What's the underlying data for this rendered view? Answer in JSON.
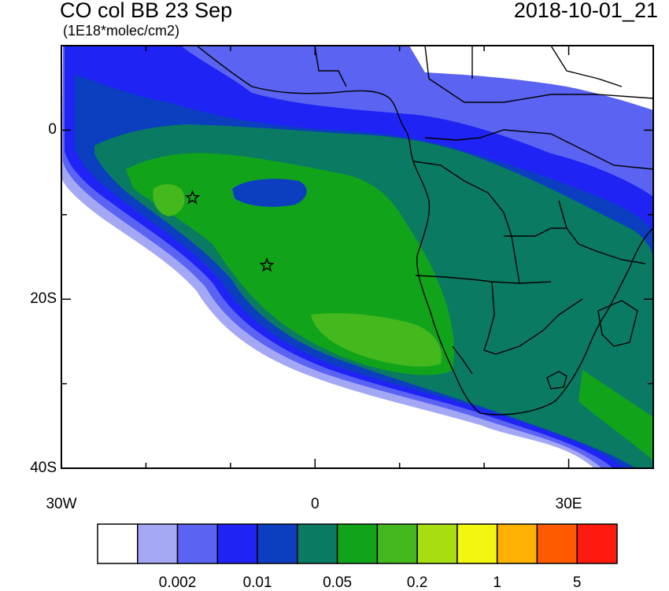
{
  "header": {
    "title": "CO col BB 23 Sep",
    "units": "(1E18*molec/cm2)",
    "timestamp": "2018-10-01_21"
  },
  "map": {
    "lon_range": [
      -30,
      40
    ],
    "lat_range": [
      -40,
      10
    ],
    "y_ticks": [
      {
        "lat": 0,
        "label": "0"
      },
      {
        "lat": -20,
        "label": "20S"
      },
      {
        "lat": -40,
        "label": "40S"
      }
    ],
    "x_ticks": [
      {
        "lon": -30,
        "label": "30W"
      },
      {
        "lon": 0,
        "label": "0"
      },
      {
        "lon": 30,
        "label": "30E"
      }
    ],
    "markers": [
      {
        "name": "star-marker-1",
        "lon": -14.5,
        "lat": -8.0
      },
      {
        "name": "star-marker-2",
        "lon": -5.7,
        "lat": -16.0
      }
    ],
    "fill_colors": {
      "l1": "#a4a8f4",
      "l2": "#5b63f2",
      "l3": "#1f24f5",
      "l4": "#0b3fc0",
      "l5": "#0a7a62",
      "l6": "#11a41b",
      "l7": "#45b81e"
    }
  },
  "colorbar": {
    "colors": [
      "#ffffff",
      "#a4a8f4",
      "#5b63f2",
      "#1f24f5",
      "#0b3fc0",
      "#0a7a62",
      "#11a41b",
      "#45b81e",
      "#a8dd10",
      "#f1f70e",
      "#ffb000",
      "#ff5a00",
      "#ff1a10"
    ],
    "labels": [
      {
        "boundary": 2,
        "text": "0.002"
      },
      {
        "boundary": 4,
        "text": "0.01"
      },
      {
        "boundary": 6,
        "text": "0.05"
      },
      {
        "boundary": 8,
        "text": "0.2"
      },
      {
        "boundary": 10,
        "text": "1"
      },
      {
        "boundary": 12,
        "text": "5"
      }
    ]
  }
}
